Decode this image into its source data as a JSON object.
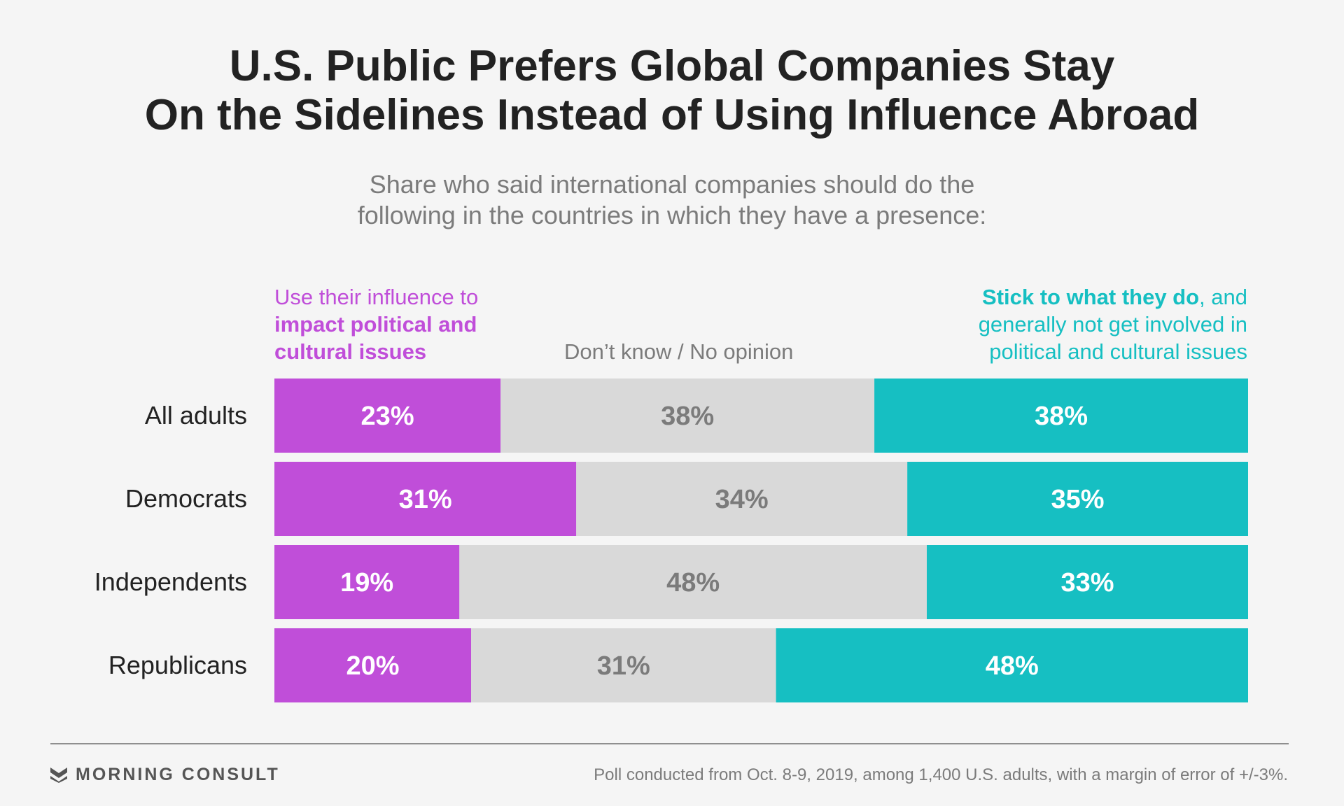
{
  "header": {
    "title_line1": "U.S. Public Prefers Global Companies Stay",
    "title_line2": "On the Sidelines Instead of Using Influence Abroad",
    "subtitle_line1": "Share who said international companies should do the",
    "subtitle_line2": "following in the countries in which they have a presence:"
  },
  "legend": {
    "left_line1": "Use their influence to",
    "left_line2": "impact political and",
    "left_line3": "cultural issues",
    "middle": "Don’t know / No opinion",
    "right_bold": "Stick to what they do",
    "right_rest": ", and",
    "right_line2": "generally not get involved in",
    "right_line3": "political and cultural issues"
  },
  "chart_data": {
    "type": "bar",
    "orientation": "horizontal-stacked",
    "categories": [
      "All adults",
      "Democrats",
      "Independents",
      "Republicans"
    ],
    "series": [
      {
        "name": "Use their influence to impact political and cultural issues",
        "values": [
          23,
          31,
          19,
          20
        ],
        "color": "#c04ed9",
        "label_color": "#ffffff"
      },
      {
        "name": "Don’t know / No opinion",
        "values": [
          38,
          34,
          48,
          31
        ],
        "color": "#d9d9d9",
        "label_color": "#7b7b7b"
      },
      {
        "name": "Stick to what they do, and generally not get involved in political and cultural issues",
        "values": [
          38,
          35,
          33,
          48
        ],
        "color": "#16bfc2",
        "label_color": "#ffffff"
      }
    ],
    "value_suffix": "%"
  },
  "footer": {
    "logo_text": "MORNING CONSULT",
    "source": "Poll conducted from Oct. 8-9, 2019, among 1,400 U.S. adults, with a margin of error of +/-3%."
  }
}
